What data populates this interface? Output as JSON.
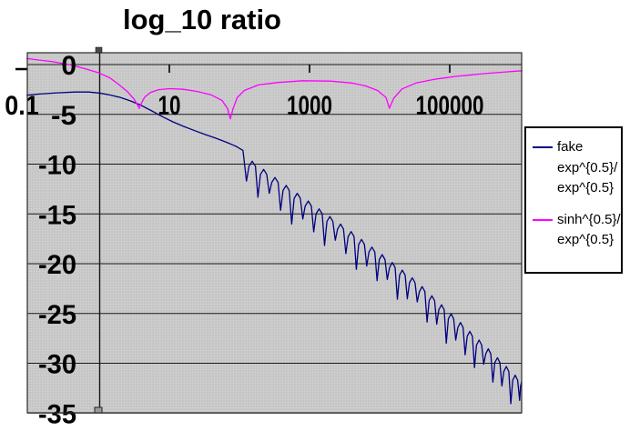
{
  "title": "log_10 ratio",
  "colors": {
    "series_fake": "#000080",
    "series_sinh": "#ff00ff",
    "plot_bg": "#c7c7c7",
    "plot_bg_dot": "#d8d8d8",
    "grid": "#1a1a1a",
    "handle": "#4a4a4a",
    "legend_border": "#000000"
  },
  "legend": {
    "items": [
      {
        "name": "fake exp^{0.5}/exp^{0.5}",
        "color": "#000080",
        "lines": [
          "fake",
          "exp^{0.5}/",
          "exp^{0.5}"
        ]
      },
      {
        "name": "sinh^{0.5}/exp^{0.5}",
        "color": "#ff00ff",
        "lines": [
          "sinh^{0.5}/",
          "exp^{0.5}"
        ]
      }
    ]
  },
  "chart_data": {
    "type": "line",
    "title": "log_10 ratio",
    "xlabel": "",
    "ylabel": "",
    "x_scale": "log10",
    "x_range": [
      0.1,
      1000000
    ],
    "y_range": [
      -35,
      1
    ],
    "grid": true,
    "legend_position": "right-outside",
    "point_format": "[log10(x), y]",
    "x_ticks": [
      {
        "value": 0.1,
        "label": "0.1",
        "t": -1,
        "tick_mark": false,
        "label_dx": -8
      },
      {
        "value": 10,
        "label": "10",
        "t": 1,
        "tick_mark": true,
        "label_dx": 0
      },
      {
        "value": 1000,
        "label": "1000",
        "t": 3,
        "tick_mark": true,
        "label_dx": 0
      },
      {
        "value": 100000,
        "label": "100000",
        "t": 5,
        "tick_mark": true,
        "label_dx": 0
      }
    ],
    "y_ticks": [
      {
        "value": 0,
        "label": "0"
      },
      {
        "value": -5,
        "label": "-5"
      },
      {
        "value": -10,
        "label": "-10"
      },
      {
        "value": -15,
        "label": "-15"
      },
      {
        "value": -20,
        "label": "-20"
      },
      {
        "value": -25,
        "label": "-25"
      },
      {
        "value": -30,
        "label": "-30"
      },
      {
        "value": -35,
        "label": "-35"
      }
    ],
    "series": [
      {
        "name": "fake exp^{0.5}/exp^{0.5}",
        "color": "#000080",
        "points": [
          [
            -1.03,
            -3.08
          ],
          [
            -0.85,
            -2.96
          ],
          [
            -0.6,
            -2.84
          ],
          [
            -0.35,
            -2.76
          ],
          [
            -0.15,
            -2.76
          ],
          [
            0.0,
            -2.86
          ],
          [
            0.15,
            -3.05
          ],
          [
            0.3,
            -3.3
          ],
          [
            0.45,
            -3.66
          ],
          [
            0.6,
            -4.1
          ],
          [
            0.75,
            -4.66
          ],
          [
            0.91,
            -5.27
          ],
          [
            1.05,
            -5.75
          ],
          [
            1.2,
            -6.2
          ],
          [
            1.35,
            -6.6
          ],
          [
            1.5,
            -7.0
          ],
          [
            1.65,
            -7.36
          ],
          [
            1.8,
            -7.76
          ],
          [
            1.95,
            -8.2
          ],
          [
            2.05,
            -8.62
          ],
          [
            2.1,
            -11.7
          ],
          [
            2.136,
            -10.21
          ],
          [
            2.182,
            -9.71
          ],
          [
            2.228,
            -10.21
          ],
          [
            2.264,
            -13.32
          ],
          [
            2.3,
            -11.03
          ],
          [
            2.345,
            -10.53
          ],
          [
            2.39,
            -11.03
          ],
          [
            2.426,
            -12.93
          ],
          [
            2.461,
            -11.84
          ],
          [
            2.507,
            -11.34
          ],
          [
            2.552,
            -11.84
          ],
          [
            2.587,
            -14.64
          ],
          [
            2.622,
            -12.64
          ],
          [
            2.667,
            -12.14
          ],
          [
            2.711,
            -12.64
          ],
          [
            2.746,
            -16.03
          ],
          [
            2.781,
            -13.43
          ],
          [
            2.825,
            -12.93
          ],
          [
            2.869,
            -13.43
          ],
          [
            2.904,
            -15.52
          ],
          [
            2.938,
            -14.21
          ],
          [
            2.982,
            -13.71
          ],
          [
            3.026,
            -14.21
          ],
          [
            3.06,
            -16.8
          ],
          [
            3.094,
            -14.99
          ],
          [
            3.137,
            -14.49
          ],
          [
            3.18,
            -14.99
          ],
          [
            3.214,
            -18.17
          ],
          [
            3.248,
            -15.76
          ],
          [
            3.291,
            -15.26
          ],
          [
            3.333,
            -15.76
          ],
          [
            3.367,
            -17.64
          ],
          [
            3.4,
            -16.52
          ],
          [
            3.443,
            -16.02
          ],
          [
            3.485,
            -16.52
          ],
          [
            3.518,
            -18.99
          ],
          [
            3.551,
            -17.28
          ],
          [
            3.593,
            -16.78
          ],
          [
            3.635,
            -17.28
          ],
          [
            3.668,
            -20.57
          ],
          [
            3.701,
            -18.06
          ],
          [
            3.742,
            -17.56
          ],
          [
            3.783,
            -18.06
          ],
          [
            3.816,
            -20.24
          ],
          [
            3.848,
            -18.83
          ],
          [
            3.89,
            -18.33
          ],
          [
            3.931,
            -18.83
          ],
          [
            3.963,
            -21.71
          ],
          [
            3.995,
            -19.59
          ],
          [
            4.036,
            -19.09
          ],
          [
            4.077,
            -19.59
          ],
          [
            4.109,
            -21.59
          ],
          [
            4.141,
            -20.38
          ],
          [
            4.181,
            -19.88
          ],
          [
            4.221,
            -20.38
          ],
          [
            4.253,
            -23.57
          ],
          [
            4.284,
            -21.15
          ],
          [
            4.324,
            -20.65
          ],
          [
            4.364,
            -21.15
          ],
          [
            4.395,
            -23.53
          ],
          [
            4.426,
            -21.92
          ],
          [
            4.466,
            -21.42
          ],
          [
            4.505,
            -21.92
          ],
          [
            4.536,
            -23.84
          ],
          [
            4.567,
            -22.8
          ],
          [
            4.606,
            -22.3
          ],
          [
            4.645,
            -22.8
          ],
          [
            4.676,
            -25.86
          ],
          [
            4.706,
            -23.72
          ],
          [
            4.745,
            -23.22
          ],
          [
            4.784,
            -23.72
          ],
          [
            4.814,
            -26.07
          ],
          [
            4.844,
            -24.63
          ],
          [
            4.883,
            -24.13
          ],
          [
            4.921,
            -24.63
          ],
          [
            4.951,
            -27.98
          ],
          [
            4.981,
            -25.53
          ],
          [
            5.019,
            -25.03
          ],
          [
            5.056,
            -25.53
          ],
          [
            5.086,
            -27.67
          ],
          [
            5.115,
            -26.41
          ],
          [
            5.153,
            -25.91
          ],
          [
            5.191,
            -26.41
          ],
          [
            5.22,
            -29.15
          ],
          [
            5.249,
            -27.29
          ],
          [
            5.287,
            -26.79
          ],
          [
            5.324,
            -27.29
          ],
          [
            5.353,
            -30.43
          ],
          [
            5.382,
            -28.17
          ],
          [
            5.419,
            -27.67
          ],
          [
            5.456,
            -28.17
          ],
          [
            5.485,
            -30.1
          ],
          [
            5.514,
            -29.05
          ],
          [
            5.55,
            -28.55
          ],
          [
            5.586,
            -29.05
          ],
          [
            5.615,
            -31.89
          ],
          [
            5.643,
            -29.94
          ],
          [
            5.68,
            -29.44
          ],
          [
            5.716,
            -29.94
          ],
          [
            5.744,
            -32.28
          ],
          [
            5.772,
            -30.83
          ],
          [
            5.808,
            -30.33
          ],
          [
            5.843,
            -30.83
          ],
          [
            5.871,
            -34.06
          ],
          [
            5.899,
            -31.7
          ],
          [
            5.934,
            -31.2
          ],
          [
            5.969,
            -31.7
          ],
          [
            5.997,
            -33.73
          ],
          [
            6.01,
            -32.3
          ],
          [
            6.025,
            -31.9
          ]
        ]
      },
      {
        "name": "sinh^{0.5}/exp^{0.5}",
        "color": "#ff00ff",
        "points": [
          [
            -1.03,
            0.6
          ],
          [
            -0.85,
            0.45
          ],
          [
            -0.66,
            0.28
          ],
          [
            -0.5,
            0.08
          ],
          [
            -0.4,
            -0.05
          ],
          [
            -0.2,
            -0.42
          ],
          [
            0.0,
            -0.85
          ],
          [
            0.15,
            -1.32
          ],
          [
            0.27,
            -1.95
          ],
          [
            0.4,
            -2.7
          ],
          [
            0.5,
            -3.5
          ],
          [
            0.55,
            -4.1
          ],
          [
            0.57,
            -4.4
          ],
          [
            0.6,
            -3.9
          ],
          [
            0.65,
            -3.25
          ],
          [
            0.73,
            -2.8
          ],
          [
            0.85,
            -2.52
          ],
          [
            1.0,
            -2.42
          ],
          [
            1.2,
            -2.48
          ],
          [
            1.4,
            -2.7
          ],
          [
            1.6,
            -3.05
          ],
          [
            1.75,
            -3.6
          ],
          [
            1.83,
            -4.4
          ],
          [
            1.87,
            -5.45
          ],
          [
            1.91,
            -4.4
          ],
          [
            1.97,
            -3.3
          ],
          [
            2.07,
            -2.6
          ],
          [
            2.27,
            -2.05
          ],
          [
            2.55,
            -1.8
          ],
          [
            2.9,
            -1.63
          ],
          [
            3.3,
            -1.66
          ],
          [
            3.6,
            -1.85
          ],
          [
            3.8,
            -2.15
          ],
          [
            3.97,
            -2.6
          ],
          [
            4.09,
            -3.3
          ],
          [
            4.14,
            -4.38
          ],
          [
            4.2,
            -3.4
          ],
          [
            4.32,
            -2.45
          ],
          [
            4.52,
            -1.85
          ],
          [
            4.78,
            -1.48
          ],
          [
            5.1,
            -1.18
          ],
          [
            5.5,
            -0.9
          ],
          [
            5.8,
            -0.74
          ],
          [
            6.03,
            -0.62
          ]
        ]
      }
    ]
  }
}
